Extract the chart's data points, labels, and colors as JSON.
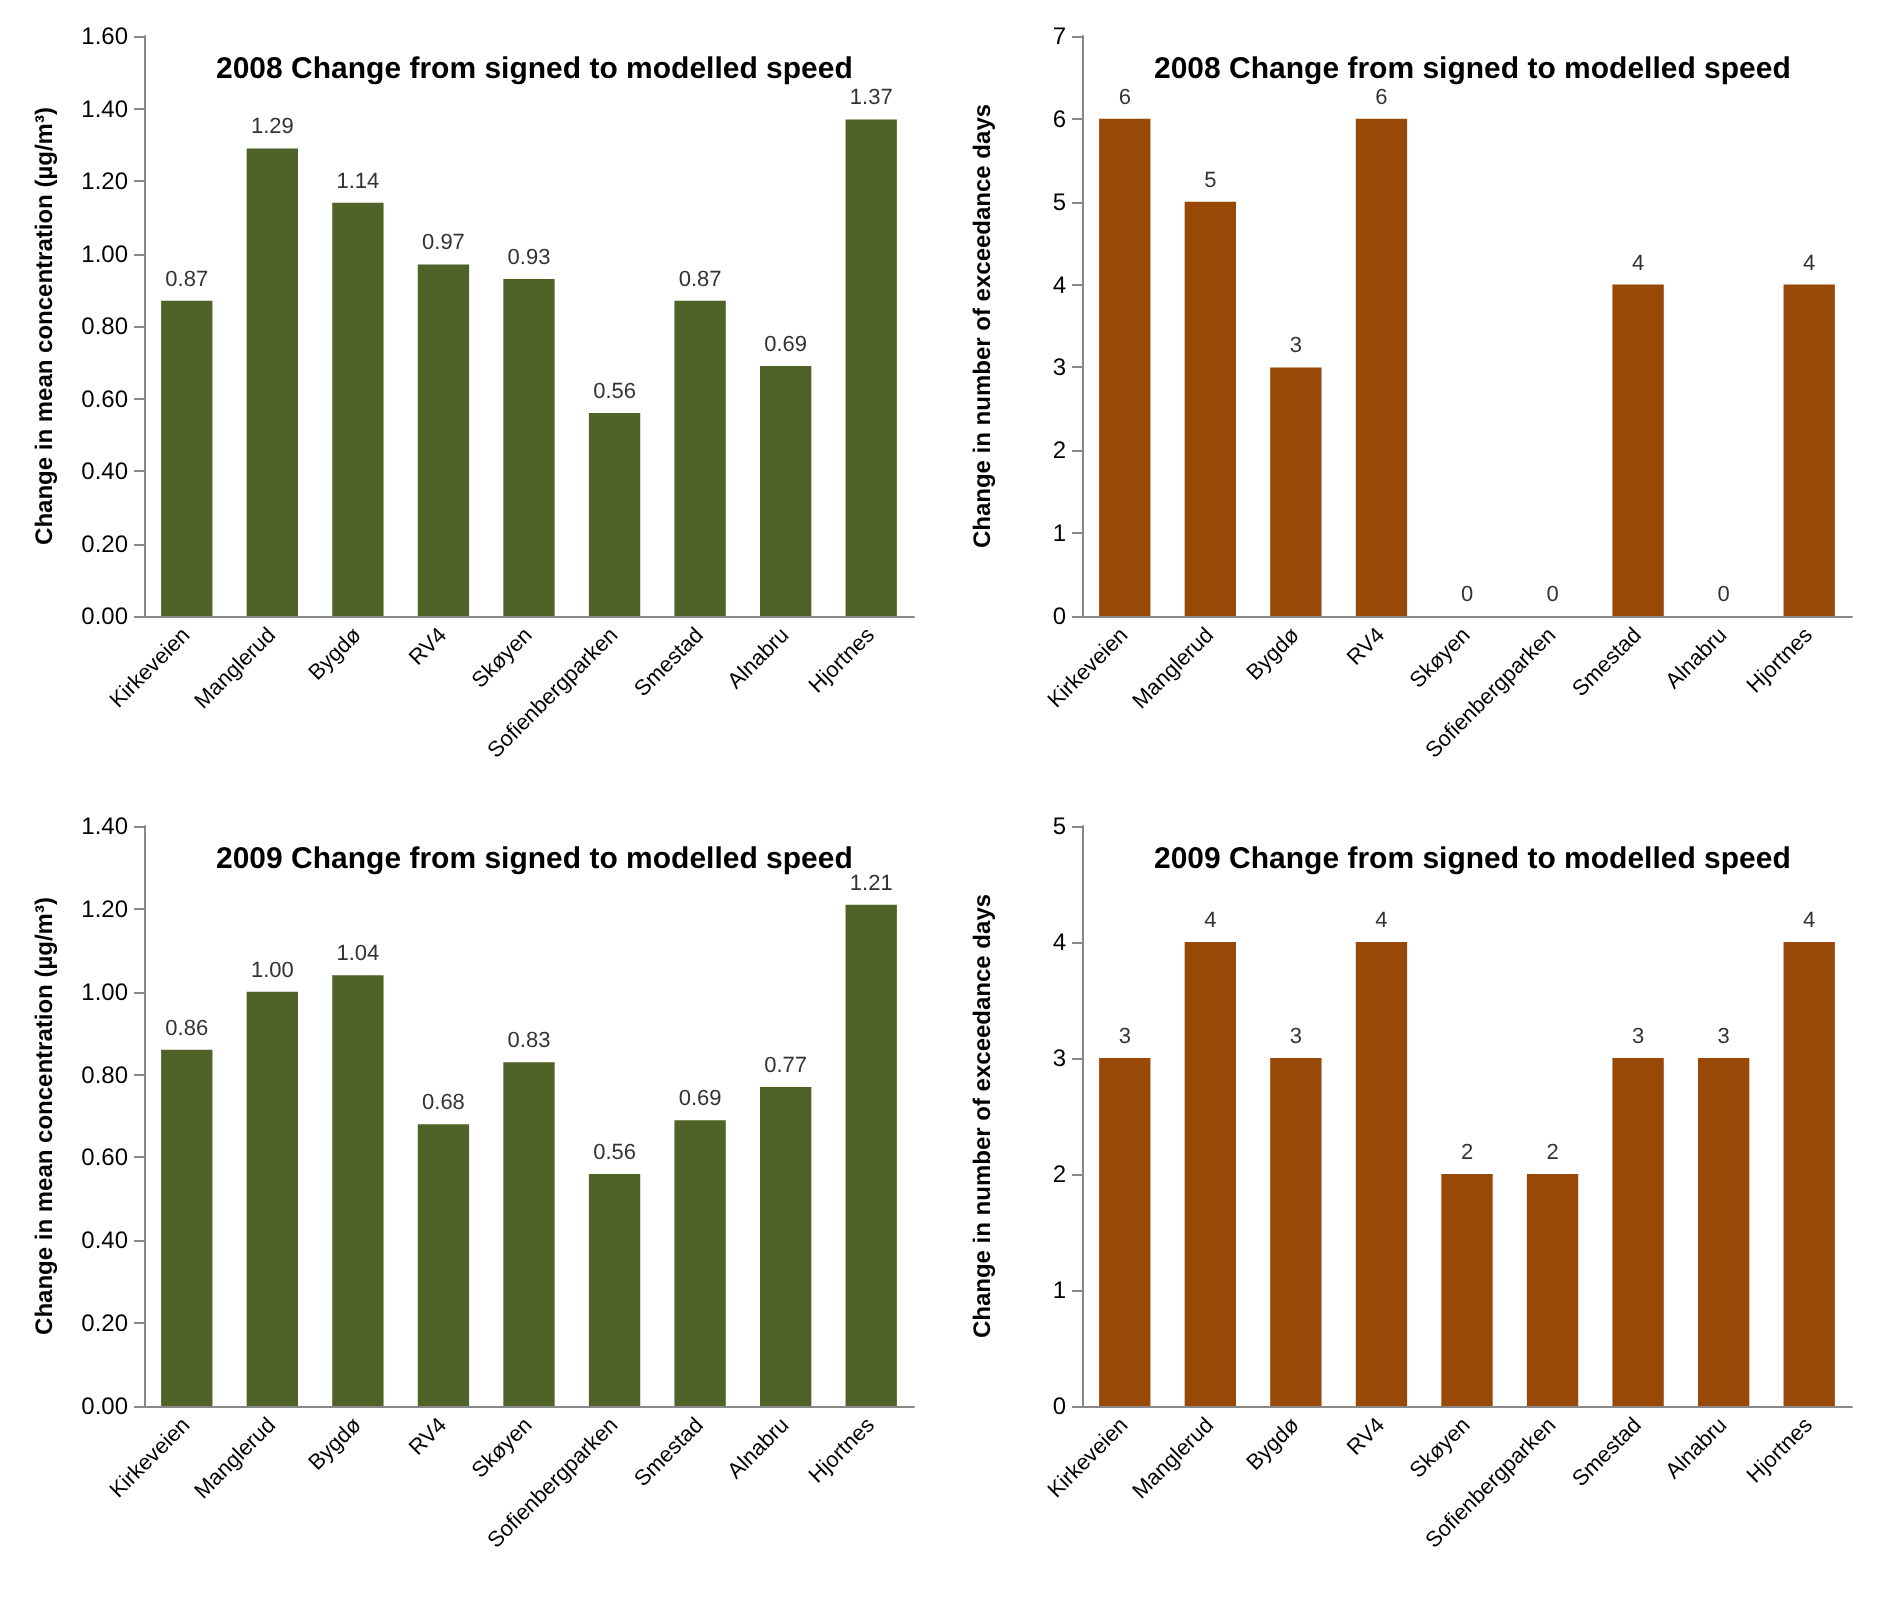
{
  "chart_data": [
    {
      "type": "bar",
      "title": "2008 Change from signed to modelled speed",
      "ylabel": "Change in mean concentration (µg/m³)",
      "categories": [
        "Kirkeveien",
        "Manglerud",
        "Bygdø",
        "RV4",
        "Skøyen",
        "Sofienbergparken",
        "Smestad",
        "Alnabru",
        "Hjortnes"
      ],
      "series": [
        {
          "color": "#4f6228",
          "values": [
            0.87,
            1.29,
            1.14,
            0.97,
            0.93,
            0.56,
            0.87,
            0.69,
            1.37
          ],
          "value_labels": [
            "0.87",
            "1.29",
            "1.14",
            "0.97",
            "0.93",
            "0.56",
            "0.87",
            "0.69",
            "1.37"
          ]
        }
      ],
      "ylim": [
        0,
        1.6
      ],
      "yticks": [
        {
          "value": 0,
          "label": "0.00"
        },
        {
          "value": 0.2,
          "label": "0.20"
        },
        {
          "value": 0.4,
          "label": "0.40"
        },
        {
          "value": 0.6,
          "label": "0.60"
        },
        {
          "value": 0.8,
          "label": "0.80"
        },
        {
          "value": 1,
          "label": "1.00"
        },
        {
          "value": 1.2,
          "label": "1.20"
        },
        {
          "value": 1.4,
          "label": "1.40"
        },
        {
          "value": 1.6,
          "label": "1.60"
        }
      ]
    },
    {
      "type": "bar",
      "title": "2008 Change from signed to modelled speed",
      "ylabel": "Change in number of exceedance days",
      "categories": [
        "Kirkeveien",
        "Manglerud",
        "Bygdø",
        "RV4",
        "Skøyen",
        "Sofienbergparken",
        "Smestad",
        "Alnabru",
        "Hjortnes"
      ],
      "series": [
        {
          "color": "#984807",
          "values": [
            6,
            5,
            3,
            6,
            0,
            0,
            4,
            0,
            4
          ]
        }
      ],
      "data_labels": true,
      "ylim": [
        0,
        7
      ],
      "yticks": [
        0,
        1,
        2,
        3,
        4,
        5,
        6,
        7
      ]
    },
    {
      "type": "bar",
      "title": "2009 Change from signed to modelled speed",
      "ylabel": "Change in mean concentration (µg/m³)",
      "categories": [
        "Kirkeveien",
        "Manglerud",
        "Bygdø",
        "RV4",
        "Skøyen",
        "Sofienbergparken",
        "Smestad",
        "Alnabru",
        "Hjortnes"
      ],
      "series": [
        {
          "color": "#4f6228",
          "values": [
            0.86,
            1.0,
            1.04,
            0.68,
            0.83,
            0.56,
            0.69,
            0.77,
            1.21
          ],
          "value_labels": [
            "0.86",
            "1.00",
            "1.04",
            "0.68",
            "0.83",
            "0.56",
            "0.69",
            "0.77",
            "1.21"
          ]
        }
      ],
      "ylim": [
        0,
        1.4
      ],
      "yticks": [
        {
          "value": 0,
          "label": "0.00"
        },
        {
          "value": 0.2,
          "label": "0.20"
        },
        {
          "value": 0.4,
          "label": "0.40"
        },
        {
          "value": 0.6,
          "label": "0.60"
        },
        {
          "value": 0.8,
          "label": "0.80"
        },
        {
          "value": 1,
          "label": "1.00"
        },
        {
          "value": 1.2,
          "label": "1.20"
        },
        {
          "value": 1.4,
          "label": "1.40"
        }
      ]
    },
    {
      "type": "bar",
      "title": "2009 Change from signed to modelled speed",
      "ylabel": "Change in number of exceedance days",
      "categories": [
        "Kirkeveien",
        "Manglerud",
        "Bygdø",
        "RV4",
        "Skøyen",
        "Sofienbergparken",
        "Smestad",
        "Alnabru",
        "Hjortnes"
      ],
      "series": [
        {
          "color": "#984807",
          "values": [
            3,
            4,
            3,
            4,
            2,
            2,
            3,
            3,
            4
          ]
        }
      ],
      "data_labels": true,
      "ylim": [
        0,
        5
      ],
      "yticks": [
        0,
        1,
        2,
        3,
        4,
        5
      ]
    }
  ]
}
